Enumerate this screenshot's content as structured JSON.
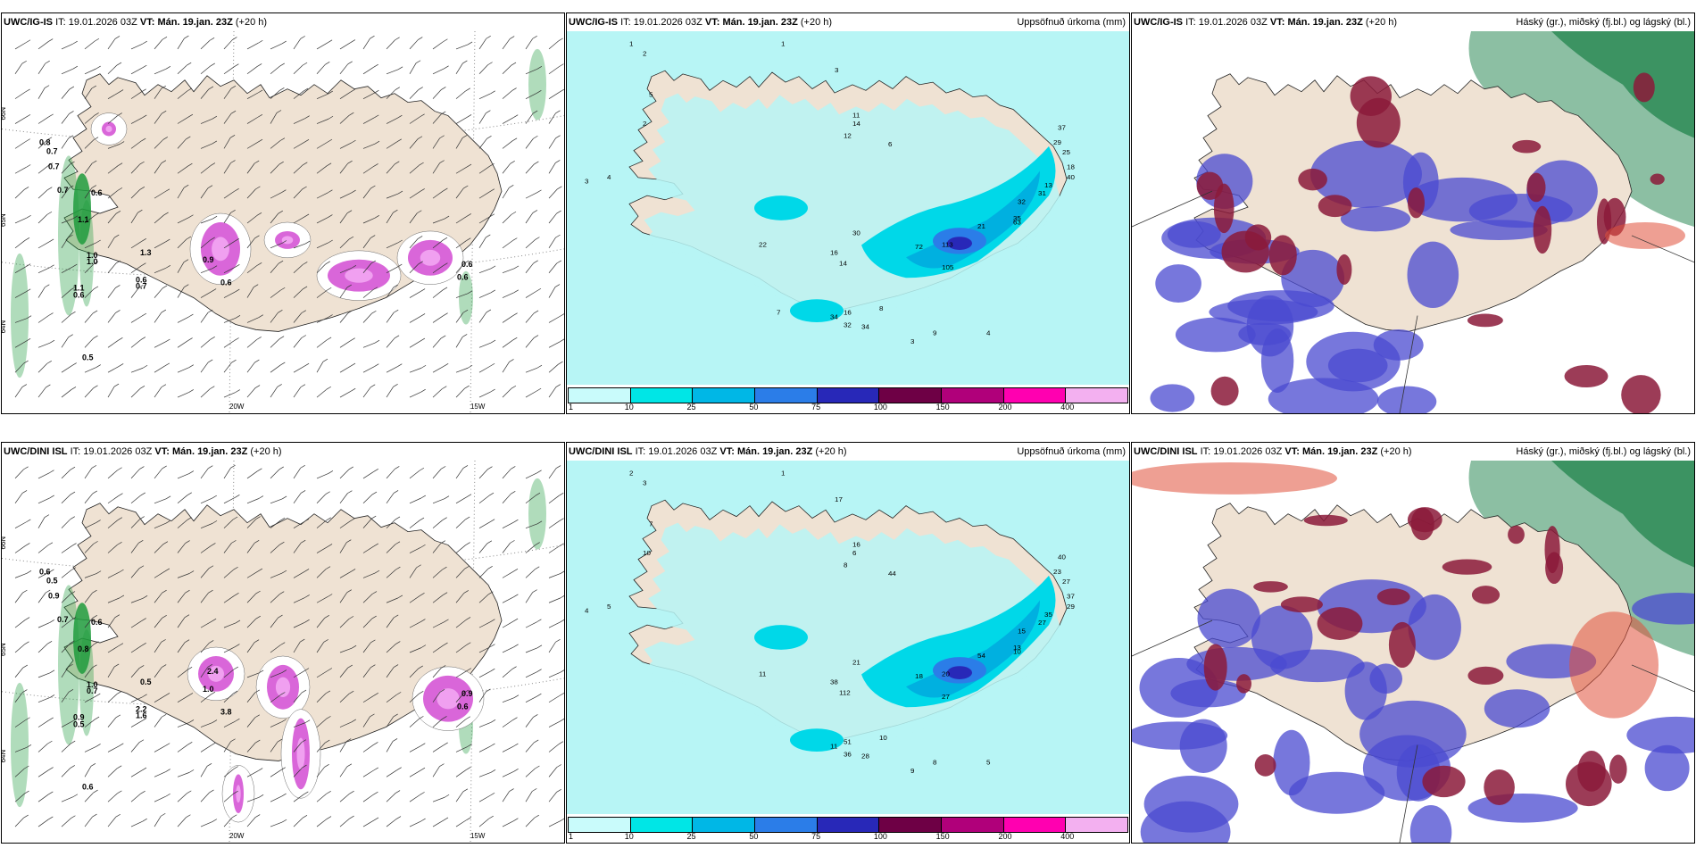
{
  "panels": [
    {
      "model": "UWC/IG-IS",
      "it_label": "IT:",
      "it": "19.01.2026 03Z",
      "vt_label": "VT:",
      "vt": "Mán. 19.jan. 23Z",
      "lead": "(+20 h)",
      "right_title": "",
      "type": "wind_precip",
      "values": [
        "0.8",
        "0.7",
        "0.7",
        "0.7",
        "0.6",
        "1.1",
        "1.0",
        "1.0",
        "1.3",
        "0.6",
        "0.7",
        "0.6",
        "1.1",
        "0.6",
        "0.5",
        "0.9",
        "0.6",
        "0.6"
      ],
      "lat_labels": [
        "66N",
        "65N",
        "64N"
      ],
      "lon_labels": [
        "20W",
        "15W"
      ]
    },
    {
      "model": "UWC/IG-IS",
      "it_label": "IT:",
      "it": "19.01.2026 03Z",
      "vt_label": "VT:",
      "vt": "Mán. 19.jan. 23Z",
      "lead": "(+20 h)",
      "right_title": "Uppsöfnuð úrkoma (mm)",
      "type": "accum",
      "values": [
        "1",
        "2",
        "3",
        "4",
        "5",
        "2",
        "1",
        "3",
        "11",
        "14",
        "12",
        "6",
        "37",
        "29",
        "25",
        "18",
        "13",
        "40",
        "31",
        "32",
        "35",
        "21",
        "22",
        "63",
        "30",
        "16",
        "14",
        "72",
        "113",
        "105",
        "16",
        "32",
        "34",
        "34",
        "8",
        "9",
        "4",
        "3",
        "7"
      ],
      "legend": [
        "1",
        "10",
        "25",
        "50",
        "75",
        "100",
        "150",
        "200",
        "400"
      ]
    },
    {
      "model": "UWC/IG-IS",
      "it_label": "IT:",
      "it": "19.01.2026 03Z",
      "vt_label": "VT:",
      "vt": "Mán. 19.jan. 23Z",
      "lead": "(+20 h)",
      "right_title": "Háský (gr.), miðský (fj.bl.) og lágský (bl.)",
      "type": "cloud"
    },
    {
      "model": "UWC/DINI ISL",
      "it_label": "IT:",
      "it": "19.01.2026 03Z",
      "vt_label": "VT:",
      "vt": "Mán. 19.jan. 23Z",
      "lead": "(+20 h)",
      "right_title": "",
      "type": "wind_precip",
      "values": [
        "0.6",
        "0.5",
        "0.9",
        "0.7",
        "0.6",
        "0.8",
        "1.0",
        "0.7",
        "0.5",
        "2.2",
        "1.6",
        "3.8",
        "0.9",
        "0.5",
        "0.6",
        "1.0",
        "0.6",
        "0.9",
        "2.4"
      ],
      "lat_labels": [
        "66N",
        "65N",
        "64N"
      ],
      "lon_labels": [
        "20W",
        "15W"
      ]
    },
    {
      "model": "UWC/DINI ISL",
      "it_label": "IT:",
      "it": "19.01.2026 03Z",
      "vt_label": "VT:",
      "vt": "Mán. 19.jan. 23Z",
      "lead": "(+20 h)",
      "right_title": "Uppsöfnuð úrkoma (mm)",
      "type": "accum",
      "values": [
        "2",
        "3",
        "4",
        "5",
        "7",
        "10",
        "1",
        "17",
        "16",
        "6",
        "8",
        "44",
        "40",
        "23",
        "27",
        "37",
        "35",
        "29",
        "27",
        "15",
        "13",
        "54",
        "11",
        "10",
        "21",
        "38",
        "112",
        "18",
        "20",
        "27",
        "51",
        "36",
        "28",
        "11",
        "10",
        "8",
        "5",
        "9"
      ],
      "legend": [
        "1",
        "10",
        "25",
        "50",
        "75",
        "100",
        "150",
        "200",
        "400"
      ]
    },
    {
      "model": "UWC/DINI ISL",
      "it_label": "IT:",
      "it": "19.01.2026 03Z",
      "vt_label": "VT:",
      "vt": "Mán. 19.jan. 23Z",
      "lead": "(+20 h)",
      "right_title": "Háský (gr.), miðský (fj.bl.) og lágský (bl.)",
      "type": "cloud"
    }
  ],
  "colors": {
    "land": "#efe2d3",
    "sea_accum": "#b7f5f5",
    "legend_swatches": [
      "#c9fbfb",
      "#00e6e6",
      "#00b7e6",
      "#2b7de8",
      "#2828b8",
      "#6e0045",
      "#b0007a",
      "#ff00b0",
      "#f3b0f0"
    ],
    "precip_green": "#1e9b3c",
    "precip_purple": "#cc33cc",
    "cloud_high": "#2e8b57",
    "cloud_mid": "#4a4ad0",
    "cloud_low": "#8b1a3a",
    "cloud_red": "#e0503a"
  }
}
